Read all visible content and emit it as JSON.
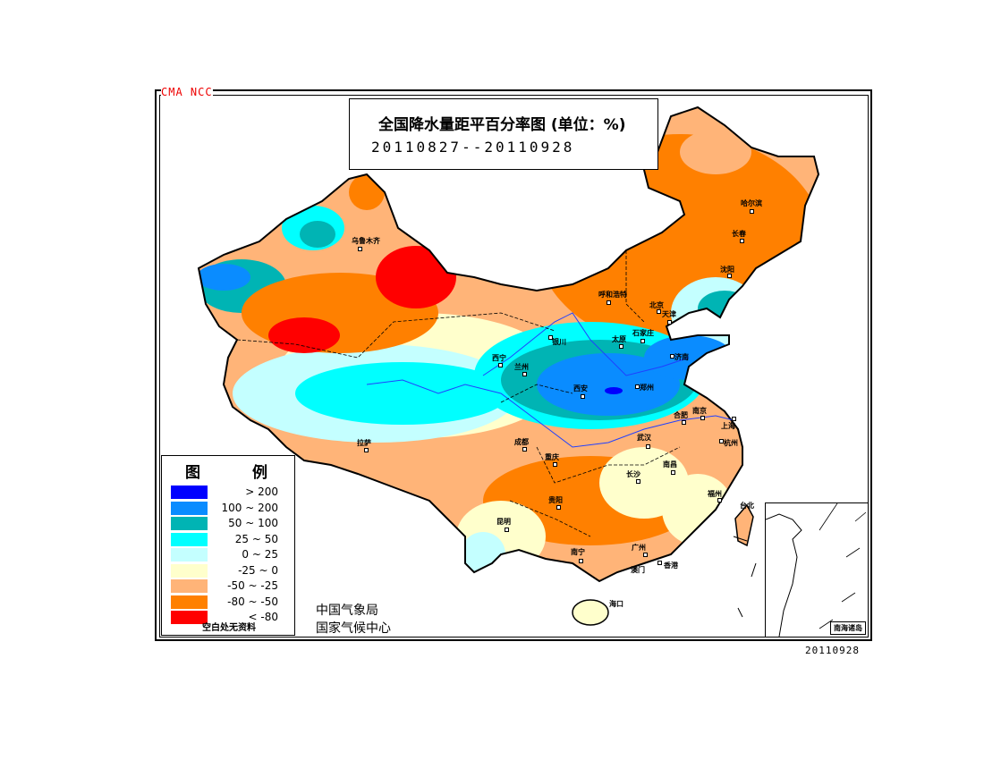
{
  "header": {
    "agency_tag": "CMA  NCC",
    "title": "全国降水量距平百分率图 (单位：%)",
    "period": "20110827--20110928"
  },
  "legend": {
    "title": "图 例",
    "items": [
      {
        "label": "> 200",
        "color": "#0000ff"
      },
      {
        "label": "100 ~ 200",
        "color": "#0a8cff"
      },
      {
        "label": "50 ~ 100",
        "color": "#00b4b4"
      },
      {
        "label": "25 ~ 50",
        "color": "#00ffff"
      },
      {
        "label": "0 ~ 25",
        "color": "#c4ffff"
      },
      {
        "label": "-25 ~ 0",
        "color": "#ffffcc"
      },
      {
        "label": "-50 ~ -25",
        "color": "#ffb478"
      },
      {
        "label": "-80 ~ -50",
        "color": "#ff8000"
      },
      {
        "label": "< -80",
        "color": "#ff0000"
      }
    ],
    "note": "空白处无资料"
  },
  "organization": {
    "line1": "中国气象局",
    "line2": "国家气候中心"
  },
  "issue_date": "20110928",
  "inset": {
    "label": "南海诸岛"
  },
  "cities": {
    "urumqi": "乌鲁木齐",
    "harbin": "哈尔滨",
    "changchun": "长春",
    "shenyang": "沈阳",
    "hohhot": "呼和浩特",
    "beijing": "北京",
    "tianjin": "天津",
    "shijiazhuang": "石家庄",
    "taiyuan": "太原",
    "jinan": "济南",
    "zhengzhou": "郑州",
    "xian": "西安",
    "yinchuan": "银川",
    "xining": "西宁",
    "lanzhou": "兰州",
    "lhasa": "拉萨",
    "chengdu": "成都",
    "chongqing": "重庆",
    "guiyang": "贵阳",
    "kunming": "昆明",
    "nanning": "南宁",
    "guangzhou": "广州",
    "macau": "澳门",
    "hongkong": "香港",
    "haikou": "海口",
    "changsha": "长沙",
    "wuhan": "武汉",
    "nanchang": "南昌",
    "hefei": "合肥",
    "nanjing": "南京",
    "shanghai": "上海",
    "hangzhou": "杭州",
    "fuzhou": "福州",
    "taipei": "台北"
  }
}
